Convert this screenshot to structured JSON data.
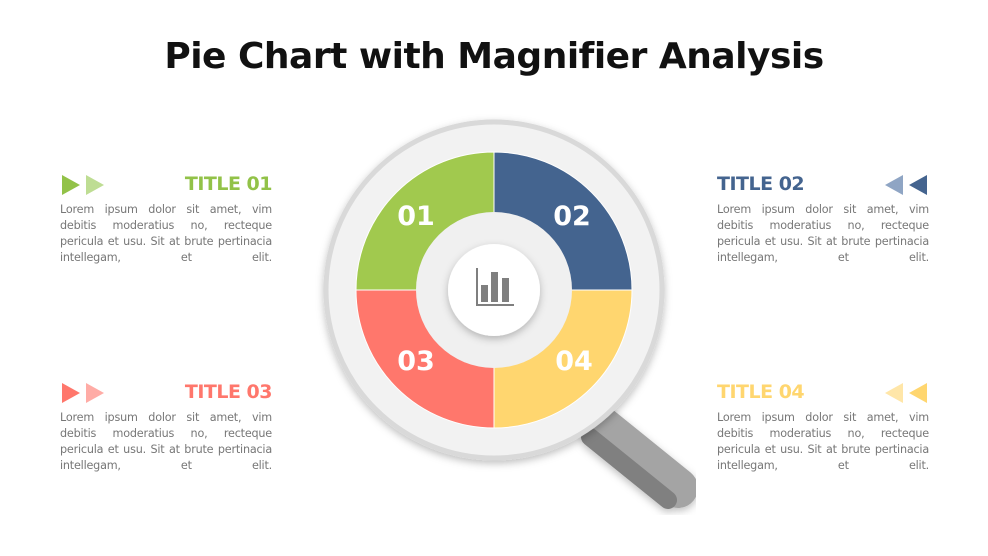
{
  "title": "Pie Chart with Magnifier Analysis",
  "center_icon": "bar-chart-icon",
  "segments": [
    {
      "label": "01",
      "color": "#A1C94E"
    },
    {
      "label": "02",
      "color": "#44648F"
    },
    {
      "label": "03",
      "color": "#FF776C"
    },
    {
      "label": "04",
      "color": "#FFD66F"
    }
  ],
  "items": [
    {
      "title": "TITLE 01",
      "color": "#92C248",
      "arrow_light": "#BEDD93",
      "text": "Lorem ipsum dolor sit amet, vim debitis moderatius no, recteque pericula et usu. Sit at brute pertinacia intellegam, et elit."
    },
    {
      "title": "TITLE 02",
      "color": "#44648F",
      "arrow_light": "#8FA5C4",
      "text": "Lorem ipsum dolor sit amet, vim debitis moderatius no, recteque pericula et usu. Sit at brute pertinacia intellegam, et elit."
    },
    {
      "title": "TITLE 03",
      "color": "#FF776C",
      "arrow_light": "#FFACA6",
      "text": "Lorem ipsum dolor sit amet, vim debitis moderatius no, recteque pericula et usu. Sit at brute pertinacia intellegam, et elit."
    },
    {
      "title": "TITLE 04",
      "color": "#FFD66F",
      "arrow_light": "#FFE6A8",
      "text": "Lorem ipsum dolor sit amet, vim debitis moderatius no, recteque pericula et usu. Sit at brute pertinacia intellegam, et elit."
    }
  ]
}
